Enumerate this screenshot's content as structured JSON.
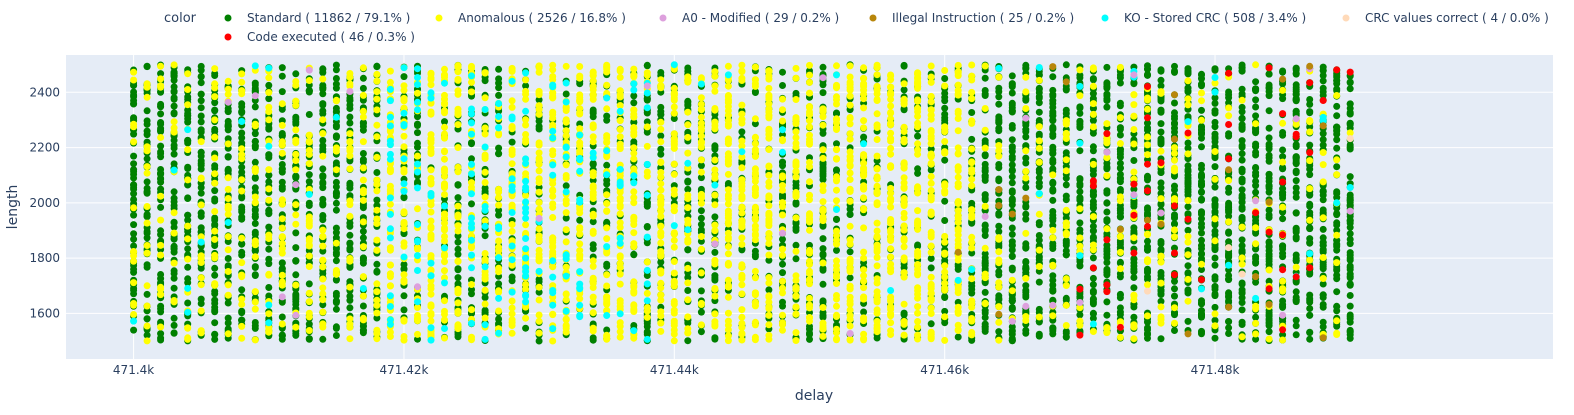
{
  "chart_data": {
    "type": "scatter",
    "xlabel": "delay",
    "ylabel": "length",
    "legend_title": "color",
    "legend_placement": "top",
    "xlim": [
      471395,
      471505
    ],
    "ylim": [
      1435,
      2535
    ],
    "x_ticks": [
      471400,
      471420,
      471440,
      471460,
      471480
    ],
    "x_tick_labels": [
      "471.4k",
      "471.42k",
      "471.44k",
      "471.46k",
      "471.48k"
    ],
    "y_ticks": [
      1600,
      1800,
      2000,
      2200,
      2400
    ],
    "y_tick_labels": [
      "1600",
      "1800",
      "2000",
      "2200",
      "2400"
    ],
    "delay_range": [
      471400,
      471490
    ],
    "length_range": [
      1500,
      2500
    ],
    "plot_background": "#e5ecf6",
    "grid": true,
    "series": [
      {
        "name": "Standard ( 11862 / 79.1% )",
        "count": 11862,
        "percent": 79.1,
        "color": "#008000"
      },
      {
        "name": "Anomalous ( 2526 / 16.8% )",
        "count": 2526,
        "percent": 16.8,
        "color": "#ffff00"
      },
      {
        "name": "A0 - Modified ( 29 / 0.2% )",
        "count": 29,
        "percent": 0.2,
        "color": "#dda0dd"
      },
      {
        "name": "Illegal Instruction ( 25 / 0.2% )",
        "count": 25,
        "percent": 0.2,
        "color": "#b8860b"
      },
      {
        "name": "KO - Stored CRC ( 508 / 3.4% )",
        "count": 508,
        "percent": 3.4,
        "color": "#00ffff"
      },
      {
        "name": "CRC values correct ( 4 / 0.0% )",
        "count": 4,
        "percent": 0.0,
        "color": "#ffdab9"
      },
      {
        "name": "Code executed ( 46 / 0.3% )",
        "count": 46,
        "percent": 0.3,
        "color": "#ff0000"
      }
    ]
  }
}
